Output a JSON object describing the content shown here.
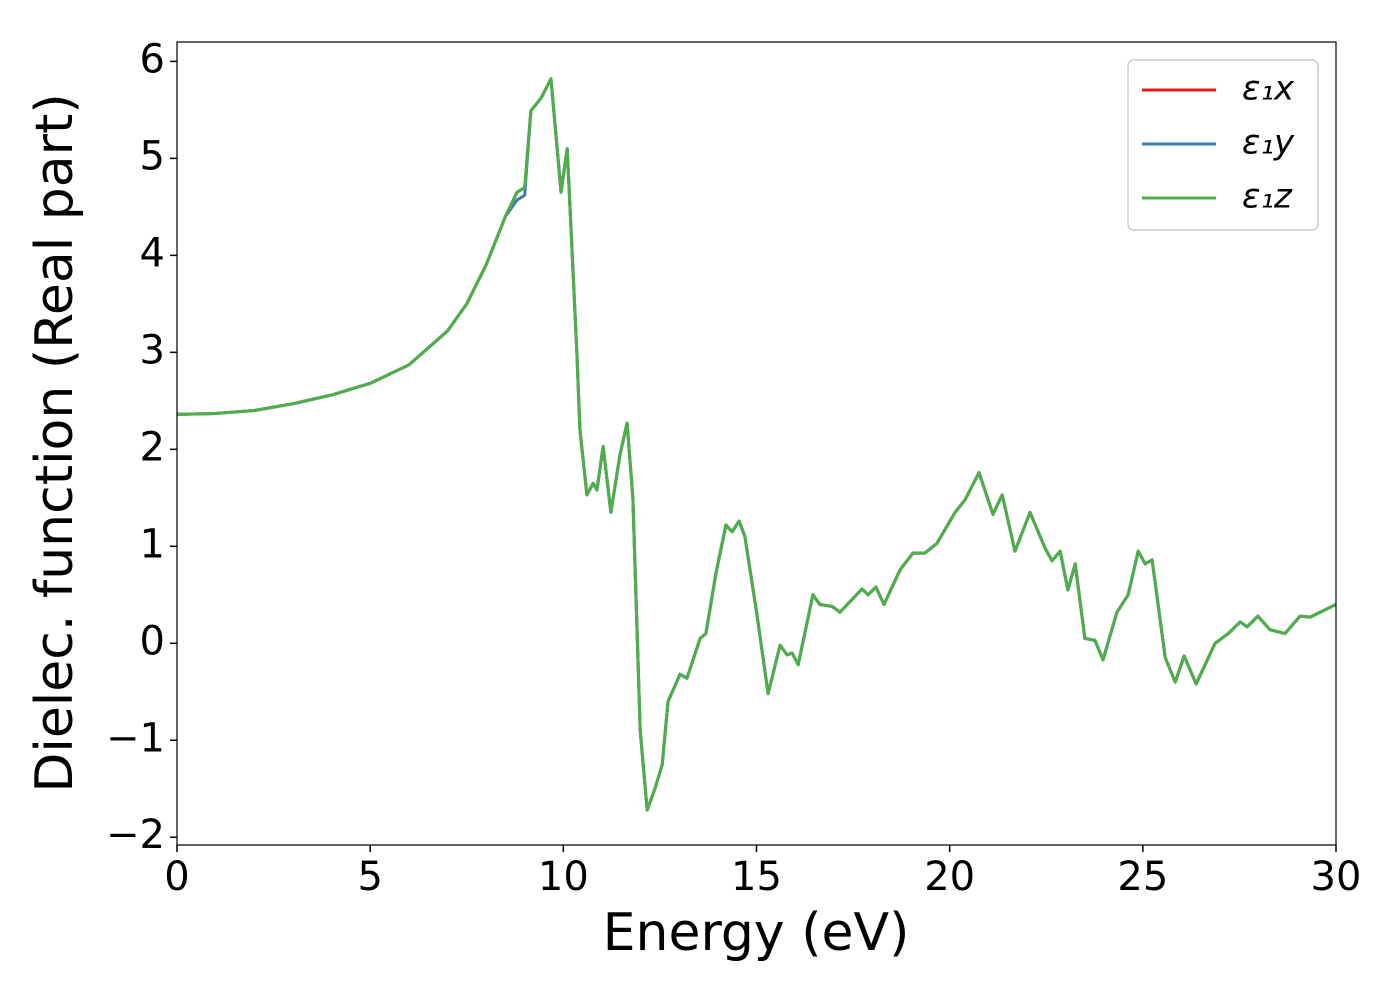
{
  "chart_data": {
    "type": "line",
    "xlabel": "Energy (eV)",
    "ylabel": "Dielec. function (Real part)",
    "x": [
      0,
      1,
      2,
      3,
      4,
      5,
      6,
      7,
      7.5,
      8,
      8.5,
      8.8,
      9.0,
      9.16,
      9.42,
      9.68,
      9.94,
      10.1,
      10.35,
      10.43,
      10.61,
      10.77,
      10.87,
      11.03,
      11.23,
      11.47,
      11.65,
      11.8,
      11.99,
      12.17,
      12.37,
      12.56,
      12.71,
      13.02,
      13.2,
      13.54,
      13.69,
      13.95,
      14.21,
      14.37,
      14.55,
      14.7,
      15.01,
      15.3,
      15.61,
      15.79,
      15.92,
      16.08,
      16.46,
      16.64,
      16.96,
      17.16,
      17.73,
      17.89,
      18.09,
      18.3,
      18.72,
      19.05,
      19.36,
      19.67,
      20.14,
      20.4,
      20.76,
      21.12,
      21.36,
      21.69,
      22.08,
      22.47,
      22.65,
      22.86,
      23.06,
      23.25,
      23.5,
      23.76,
      23.97,
      24.33,
      24.62,
      24.88,
      25.06,
      25.24,
      25.58,
      25.84,
      26.07,
      26.38,
      26.87,
      27.21,
      27.52,
      27.7,
      27.98,
      28.29,
      28.68,
      29.07,
      29.33,
      30
    ],
    "series": [
      {
        "name": "ε₁x",
        "color": "#e41a1c",
        "values": [
          2.36,
          2.37,
          2.4,
          2.47,
          2.56,
          2.68,
          2.87,
          3.22,
          3.5,
          3.9,
          4.4,
          4.65,
          4.7,
          5.49,
          5.62,
          5.82,
          4.65,
          5.1,
          3.0,
          2.2,
          1.53,
          1.65,
          1.58,
          2.03,
          1.35,
          1.95,
          2.27,
          1.5,
          -0.9,
          -1.72,
          -1.5,
          -1.25,
          -0.6,
          -0.32,
          -0.36,
          0.05,
          0.1,
          0.72,
          1.22,
          1.15,
          1.26,
          1.1,
          0.3,
          -0.52,
          -0.02,
          -0.12,
          -0.1,
          -0.22,
          0.5,
          0.4,
          0.38,
          0.32,
          0.56,
          0.5,
          0.58,
          0.4,
          0.76,
          0.93,
          0.93,
          1.03,
          1.35,
          1.48,
          1.76,
          1.33,
          1.53,
          0.95,
          1.35,
          0.98,
          0.85,
          0.95,
          0.55,
          0.82,
          0.05,
          0.03,
          -0.17,
          0.32,
          0.5,
          0.95,
          0.82,
          0.86,
          -0.15,
          -0.4,
          -0.13,
          -0.42,
          0.0,
          0.1,
          0.22,
          0.17,
          0.28,
          0.14,
          0.1,
          0.28,
          0.27,
          0.4
        ]
      },
      {
        "name": "ε₁y",
        "color": "#377eb8",
        "values": [
          2.36,
          2.37,
          2.4,
          2.47,
          2.56,
          2.68,
          2.87,
          3.22,
          3.5,
          3.9,
          4.4,
          4.57,
          4.62,
          5.49,
          5.62,
          5.82,
          4.65,
          5.1,
          3.0,
          2.2,
          1.53,
          1.65,
          1.58,
          2.03,
          1.35,
          1.95,
          2.27,
          1.5,
          -0.9,
          -1.72,
          -1.5,
          -1.25,
          -0.6,
          -0.32,
          -0.36,
          0.05,
          0.1,
          0.72,
          1.22,
          1.15,
          1.26,
          1.1,
          0.3,
          -0.52,
          -0.02,
          -0.12,
          -0.1,
          -0.22,
          0.5,
          0.4,
          0.38,
          0.32,
          0.56,
          0.5,
          0.58,
          0.4,
          0.76,
          0.93,
          0.93,
          1.03,
          1.35,
          1.48,
          1.76,
          1.33,
          1.53,
          0.95,
          1.35,
          0.98,
          0.85,
          0.95,
          0.55,
          0.82,
          0.05,
          0.03,
          -0.17,
          0.32,
          0.5,
          0.95,
          0.82,
          0.86,
          -0.15,
          -0.4,
          -0.13,
          -0.42,
          0.0,
          0.1,
          0.22,
          0.17,
          0.28,
          0.14,
          0.1,
          0.28,
          0.27,
          0.4
        ]
      },
      {
        "name": "ε₁z",
        "color": "#4daf4a",
        "values": [
          2.36,
          2.37,
          2.4,
          2.47,
          2.56,
          2.68,
          2.87,
          3.22,
          3.5,
          3.9,
          4.4,
          4.65,
          4.7,
          5.49,
          5.62,
          5.82,
          4.65,
          5.1,
          3.0,
          2.2,
          1.53,
          1.65,
          1.58,
          2.03,
          1.35,
          1.95,
          2.27,
          1.5,
          -0.9,
          -1.72,
          -1.5,
          -1.25,
          -0.6,
          -0.32,
          -0.36,
          0.05,
          0.1,
          0.72,
          1.22,
          1.15,
          1.26,
          1.1,
          0.3,
          -0.52,
          -0.02,
          -0.12,
          -0.1,
          -0.22,
          0.5,
          0.4,
          0.38,
          0.32,
          0.56,
          0.5,
          0.58,
          0.4,
          0.76,
          0.93,
          0.93,
          1.03,
          1.35,
          1.48,
          1.76,
          1.33,
          1.53,
          0.95,
          1.35,
          0.98,
          0.85,
          0.95,
          0.55,
          0.82,
          0.05,
          0.03,
          -0.17,
          0.32,
          0.5,
          0.95,
          0.82,
          0.86,
          -0.15,
          -0.4,
          -0.13,
          -0.42,
          0.0,
          0.1,
          0.22,
          0.17,
          0.28,
          0.14,
          0.1,
          0.28,
          0.27,
          0.4
        ]
      }
    ],
    "xlim": [
      0,
      30
    ],
    "xticks": [
      0,
      5,
      10,
      15,
      20,
      25,
      30
    ],
    "ylim": [
      -2.08,
      6.2
    ],
    "yticks": [
      {
        "value": -2,
        "label": "−2"
      },
      {
        "value": -1,
        "label": "−1"
      },
      0,
      1,
      2,
      3,
      4,
      5,
      6
    ],
    "grid": false,
    "legend": "upper right"
  }
}
